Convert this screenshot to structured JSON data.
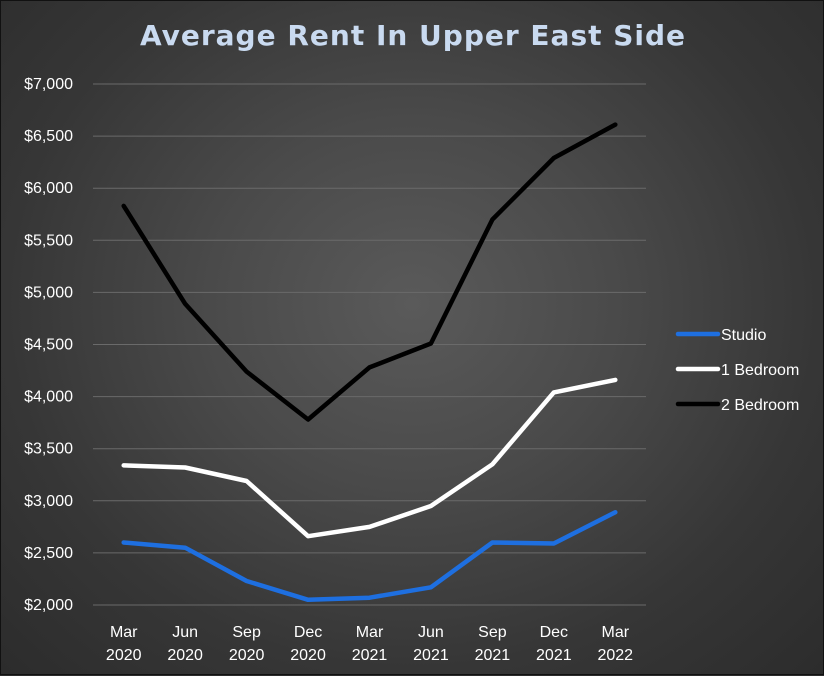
{
  "chart_data": {
    "type": "line",
    "title": "Average Rent In Upper East Side",
    "xlabel": "",
    "ylabel": "",
    "ylim": [
      2000,
      7000
    ],
    "y_ticks": [
      {
        "value": 2000,
        "label": "$2,000"
      },
      {
        "value": 2500,
        "label": "$2,500"
      },
      {
        "value": 3000,
        "label": "$3,000"
      },
      {
        "value": 3500,
        "label": "$3,500"
      },
      {
        "value": 4000,
        "label": "$4,000"
      },
      {
        "value": 4500,
        "label": "$4,500"
      },
      {
        "value": 5000,
        "label": "$5,000"
      },
      {
        "value": 5500,
        "label": "$5,500"
      },
      {
        "value": 6000,
        "label": "$6,000"
      },
      {
        "value": 6500,
        "label": "$6,500"
      },
      {
        "value": 7000,
        "label": "$7,000"
      }
    ],
    "categories": [
      {
        "month": "Mar",
        "year": "2020"
      },
      {
        "month": "Jun",
        "year": "2020"
      },
      {
        "month": "Sep",
        "year": "2020"
      },
      {
        "month": "Dec",
        "year": "2020"
      },
      {
        "month": "Mar",
        "year": "2021"
      },
      {
        "month": "Jun",
        "year": "2021"
      },
      {
        "month": "Sep",
        "year": "2021"
      },
      {
        "month": "Dec",
        "year": "2021"
      },
      {
        "month": "Mar",
        "year": "2022"
      }
    ],
    "grid": true,
    "legend_position": "right",
    "series": [
      {
        "name": "Studio",
        "color": "#1e6fe0",
        "values": [
          2600,
          2550,
          2230,
          2050,
          2070,
          2170,
          2600,
          2590,
          2890
        ]
      },
      {
        "name": "1 Bedroom",
        "color": "#ffffff",
        "values": [
          3340,
          3320,
          3190,
          2660,
          2750,
          2950,
          3350,
          4040,
          4160
        ]
      },
      {
        "name": "2 Bedroom",
        "color": "#000000",
        "values": [
          5830,
          4890,
          4240,
          3780,
          4280,
          4510,
          5700,
          6290,
          6610
        ]
      }
    ]
  }
}
